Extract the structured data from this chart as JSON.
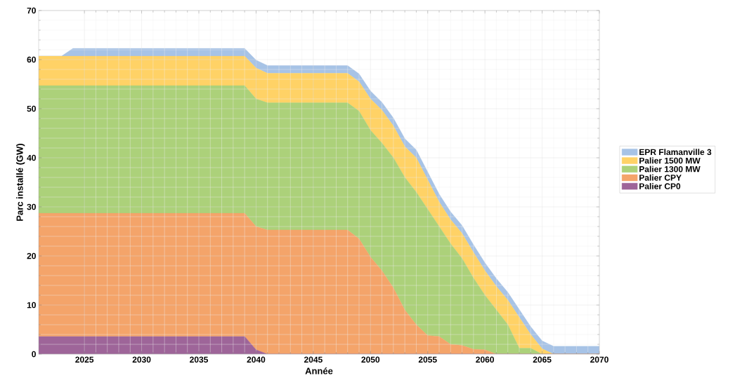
{
  "chart_data": {
    "type": "area",
    "stacked": true,
    "xlabel": "Année",
    "ylabel": "Parc installé (GW)",
    "x": [
      2021,
      2022,
      2023,
      2024,
      2025,
      2026,
      2027,
      2028,
      2029,
      2030,
      2031,
      2032,
      2033,
      2034,
      2035,
      2036,
      2037,
      2038,
      2039,
      2040,
      2041,
      2042,
      2043,
      2044,
      2045,
      2046,
      2047,
      2048,
      2049,
      2050,
      2051,
      2052,
      2053,
      2054,
      2055,
      2056,
      2057,
      2058,
      2059,
      2060,
      2061,
      2062,
      2063,
      2064,
      2065,
      2066,
      2067,
      2068,
      2069,
      2070
    ],
    "series": [
      {
        "name": "Palier CP0",
        "color": "#9e6599",
        "values": [
          3.6,
          3.6,
          3.6,
          3.6,
          3.6,
          3.6,
          3.6,
          3.6,
          3.6,
          3.6,
          3.6,
          3.6,
          3.6,
          3.6,
          3.6,
          3.6,
          3.6,
          3.6,
          3.6,
          0.9,
          0,
          0,
          0,
          0,
          0,
          0,
          0,
          0,
          0,
          0,
          0,
          0,
          0,
          0,
          0,
          0,
          0,
          0,
          0,
          0,
          0,
          0,
          0,
          0,
          0,
          0,
          0,
          0,
          0,
          0
        ]
      },
      {
        "name": "Palier CPY",
        "color": "#f4a46a",
        "values": [
          25.1,
          25.1,
          25.1,
          25.1,
          25.1,
          25.1,
          25.1,
          25.1,
          25.1,
          25.1,
          25.1,
          25.1,
          25.1,
          25.1,
          25.1,
          25.1,
          25.1,
          25.1,
          25.1,
          25.1,
          25.3,
          25.3,
          25.3,
          25.3,
          25.3,
          25.3,
          25.3,
          25.3,
          23.5,
          19.8,
          17,
          13.5,
          9,
          6,
          3.8,
          3.6,
          2,
          1.8,
          1,
          0.9,
          0,
          0,
          0,
          0,
          0,
          0,
          0,
          0,
          0,
          0
        ]
      },
      {
        "name": "Palier 1300 MW",
        "color": "#acd17a",
        "values": [
          26,
          26,
          26,
          26,
          26,
          26,
          26,
          26,
          26,
          26,
          26,
          26,
          26,
          26,
          26,
          26,
          26,
          26,
          26,
          26,
          25.9,
          25.9,
          25.9,
          25.9,
          25.9,
          25.9,
          25.9,
          25.9,
          26,
          25.8,
          26,
          26.5,
          27,
          27,
          25.7,
          22.4,
          20.5,
          17.7,
          14.5,
          11.1,
          9,
          6,
          1.2,
          1.2,
          0,
          0,
          0,
          0,
          0,
          0
        ]
      },
      {
        "name": "Palier 1500 MW",
        "color": "#ffd266",
        "values": [
          6,
          6,
          6,
          6,
          6,
          6,
          6,
          6,
          6,
          6,
          6,
          6,
          6,
          6,
          6,
          6,
          6,
          6,
          6,
          6.3,
          6,
          6,
          6,
          6,
          6,
          6,
          6,
          6,
          6,
          6.4,
          6.7,
          6.5,
          6.3,
          7,
          6,
          5,
          4.9,
          5.1,
          5.2,
          5,
          4.8,
          5,
          6.3,
          2.8,
          1.1,
          0,
          0,
          0,
          0,
          0
        ]
      },
      {
        "name": "EPR Flamanville 3",
        "color": "#a7c3e6",
        "values": [
          0,
          0,
          0,
          1.6,
          1.6,
          1.6,
          1.6,
          1.6,
          1.6,
          1.6,
          1.6,
          1.6,
          1.6,
          1.6,
          1.6,
          1.6,
          1.6,
          1.6,
          1.6,
          1.6,
          1.6,
          1.6,
          1.6,
          1.6,
          1.6,
          1.6,
          1.6,
          1.6,
          1.6,
          1.6,
          1.6,
          1.6,
          1.6,
          1.6,
          1.6,
          1.6,
          1.6,
          1.6,
          1.6,
          1.6,
          1.6,
          1.6,
          1.6,
          1.6,
          1.6,
          1.6,
          1.6,
          1.6,
          1.6,
          1.6
        ]
      }
    ],
    "xlim": [
      2021,
      2070
    ],
    "ylim": [
      0,
      70
    ],
    "xticks": [
      2025,
      2030,
      2035,
      2040,
      2045,
      2050,
      2055,
      2060,
      2065,
      2070
    ],
    "yticks": [
      0,
      10,
      20,
      30,
      40,
      50,
      60,
      70
    ],
    "grid": true,
    "legend": "right"
  }
}
